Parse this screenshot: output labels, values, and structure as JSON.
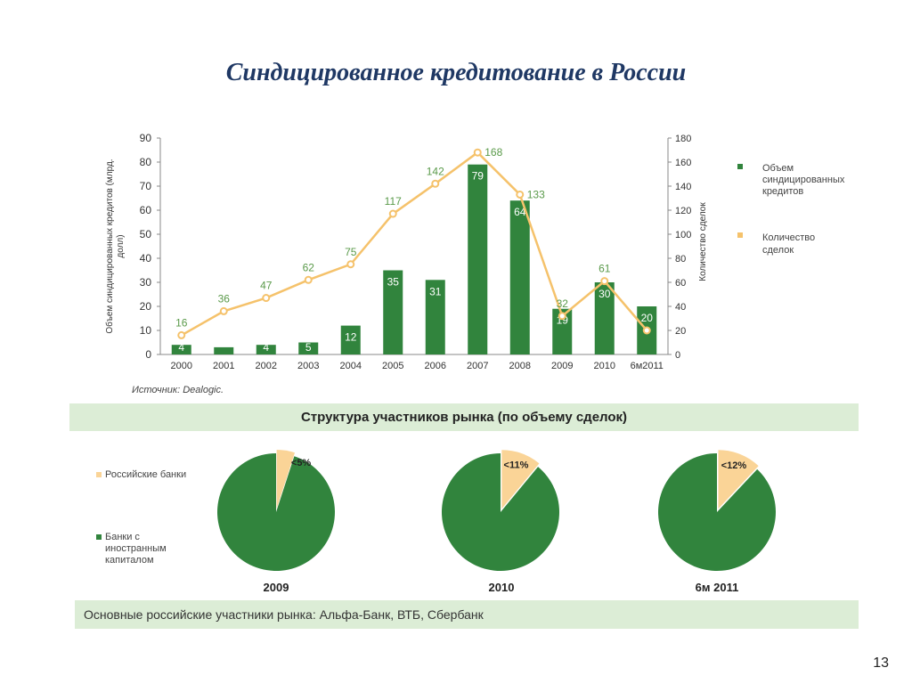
{
  "slide": {
    "title": "Синдицированное кредитование в России",
    "page_number": "13"
  },
  "colors": {
    "bar": "#31843d",
    "line": "#f5c26b",
    "band": "#dcedd6",
    "pie_main": "#31843d",
    "pie_slice": "#fad497",
    "title": "#1f3864"
  },
  "chart_data": [
    {
      "type": "bar",
      "categories": [
        "2000",
        "2001",
        "2002",
        "2003",
        "2004",
        "2005",
        "2006",
        "2007",
        "2008",
        "2009",
        "2010",
        "6м2011"
      ],
      "series": [
        {
          "name": "Объем синдицированных кредитов",
          "axis": "left",
          "values": [
            4,
            3,
            4,
            5,
            12,
            35,
            31,
            79,
            64,
            19,
            30,
            20
          ],
          "labels": [
            "4",
            "",
            "4",
            "5",
            "12",
            "35",
            "31",
            "79",
            "64",
            "19",
            "30",
            "20"
          ]
        },
        {
          "name": "Количество сделок",
          "type": "line",
          "axis": "right",
          "values": [
            16,
            36,
            47,
            62,
            75,
            117,
            142,
            168,
            133,
            32,
            61,
            20
          ],
          "labels": [
            "16",
            "36",
            "47",
            "62",
            "75",
            "117",
            "142",
            "168",
            "133",
            "32",
            "61",
            ""
          ]
        }
      ],
      "ylabel": "Объем синдицированных кредитов (млрд. долл)",
      "ylabel_right": "Количество сделок",
      "ylim": [
        0,
        90
      ],
      "ylim_right": [
        0,
        180
      ],
      "yticks": [
        "0",
        "10",
        "20",
        "30",
        "40",
        "50",
        "60",
        "70",
        "80",
        "90"
      ],
      "yticks_right": [
        "0",
        "20",
        "40",
        "60",
        "80",
        "100",
        "120",
        "140",
        "160",
        "180"
      ],
      "legend": [
        {
          "label": "Объем синдицированных кредитов"
        },
        {
          "label": "Количество сделок"
        }
      ],
      "legend_position": "right",
      "grid": false
    },
    {
      "type": "pie",
      "title": "Структура участников рынка (по объему сделок)",
      "legend": [
        "Российские банки",
        "Банки с иностранным капиталом"
      ],
      "pies": [
        {
          "caption": "2009",
          "slice_label": "<5%",
          "slice_value": 5
        },
        {
          "caption": "2010",
          "slice_label": "<11%",
          "slice_value": 11
        },
        {
          "caption": "6м 2011",
          "slice_label": "<12%",
          "slice_value": 12
        }
      ]
    }
  ],
  "source": "Источник: Dealogic.",
  "footer": "Основные российские участники рынка:  Альфа-Банк, ВТБ, Сбербанк"
}
